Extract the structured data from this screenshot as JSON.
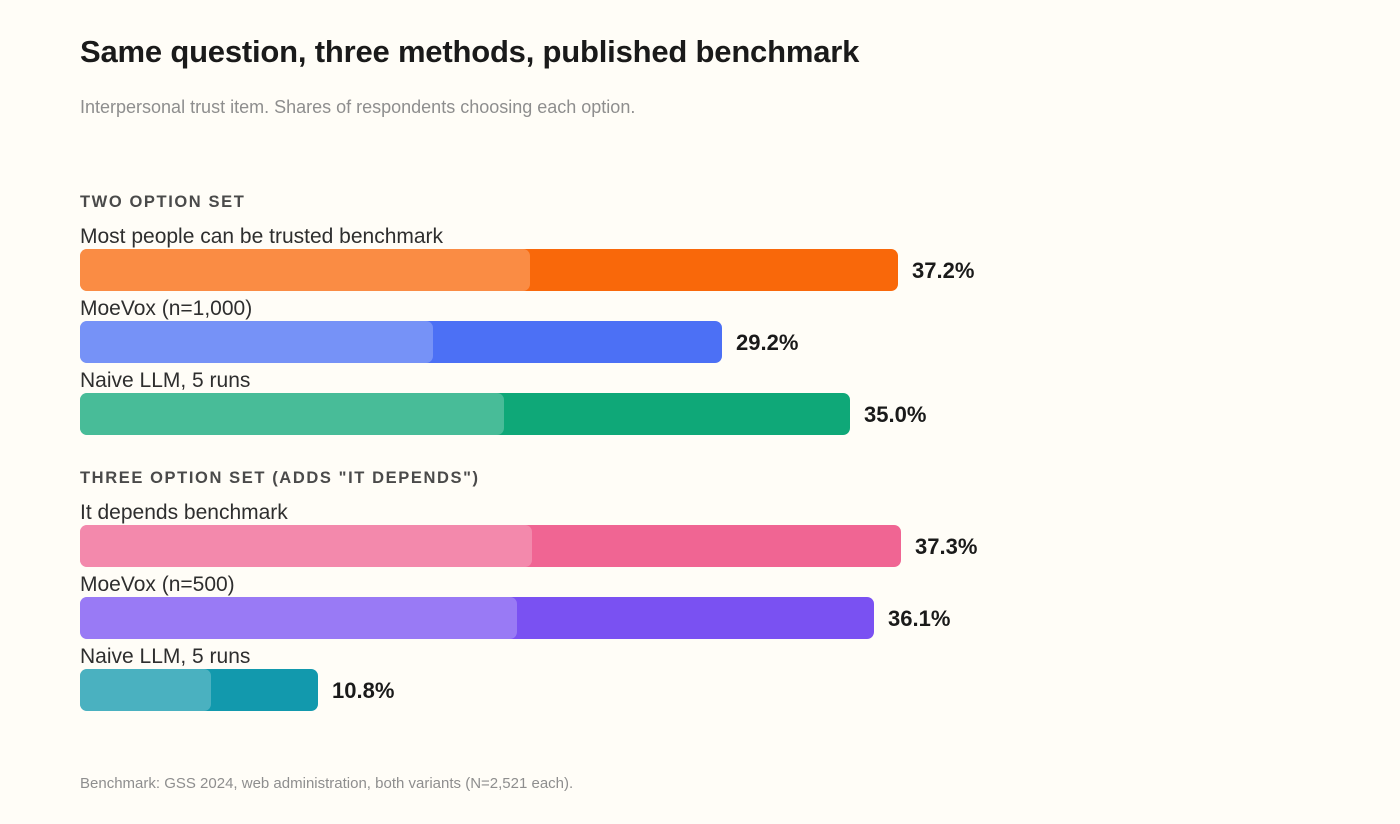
{
  "chart_data": {
    "type": "bar",
    "orientation": "horizontal",
    "title": "Same question, three methods, published benchmark",
    "subtitle": "Interpersonal trust item. Shares of respondents choosing each option.",
    "unit": "%",
    "groups": [
      {
        "heading": "TWO OPTION SET",
        "bars": [
          {
            "label": "Most people can be trusted benchmark",
            "value": 37.2,
            "display": "37.2%",
            "color": "#f9680a"
          },
          {
            "label": "MoeVox (n=1,000)",
            "value": 29.2,
            "display": "29.2%",
            "color": "#4c70f5"
          },
          {
            "label": "Naive LLM, 5 runs",
            "value": 35.0,
            "display": "35.0%",
            "color": "#0fa878"
          }
        ]
      },
      {
        "heading": "THREE OPTION SET (ADDS \"IT DEPENDS\")",
        "bars": [
          {
            "label": "It depends benchmark",
            "value": 37.3,
            "display": "37.3%",
            "color": "#f06593"
          },
          {
            "label": "MoeVox (n=500)",
            "value": 36.1,
            "display": "36.1%",
            "color": "#7a51f2"
          },
          {
            "label": "Naive LLM, 5 runs",
            "value": 10.8,
            "display": "10.8%",
            "color": "#1299ad"
          }
        ]
      }
    ],
    "footnote": "Benchmark: GSS 2024, web administration, both variants (N=2,521 each)."
  }
}
